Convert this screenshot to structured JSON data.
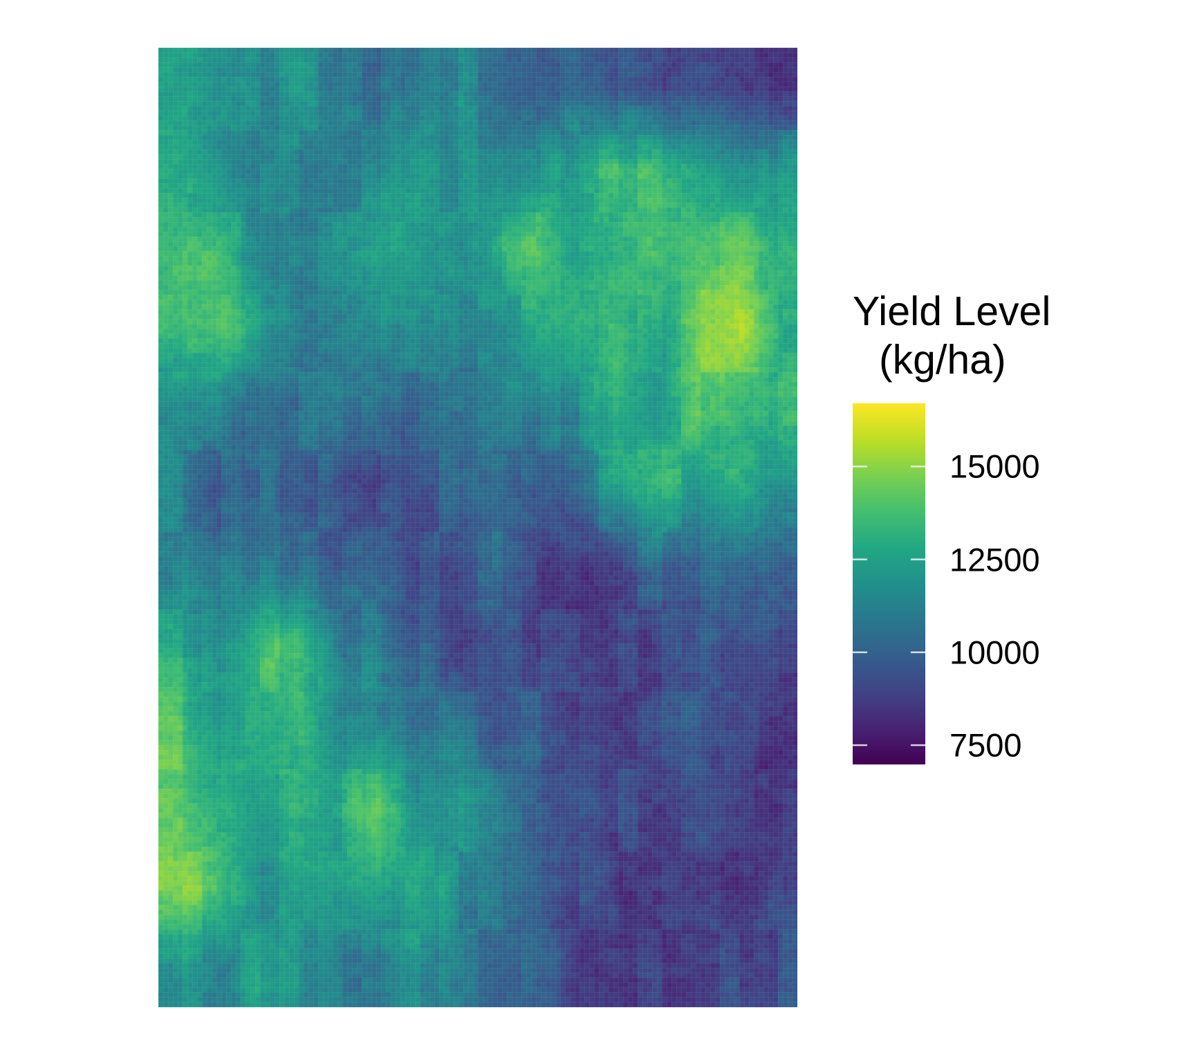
{
  "chart_data": {
    "type": "heatmap",
    "description_of_field": "",
    "title": "",
    "xlabel": "",
    "ylabel": "",
    "grid": false,
    "legend": {
      "placement": "right",
      "title_line1": "Yield Level",
      "title_line2": "(kg/ha)",
      "colormap": "viridis",
      "range": [
        7000,
        16700
      ],
      "ticks": [
        {
          "value": 15000,
          "label": "15000"
        },
        {
          "value": 12500,
          "label": "12500"
        },
        {
          "value": 10000,
          "label": "10000"
        },
        {
          "value": 7500,
          "label": "7500"
        }
      ]
    },
    "grid_rows": 12,
    "grid_cols": 16,
    "values": [
      [
        12900,
        11900,
        11500,
        11800,
        11000,
        10300,
        10800,
        11500,
        10700,
        10100,
        10200,
        9400,
        9000,
        9300,
        9100,
        8600
      ],
      [
        13100,
        12000,
        11300,
        10900,
        11400,
        11200,
        12400,
        11800,
        11700,
        11800,
        12900,
        13600,
        13400,
        12400,
        12200,
        11900
      ],
      [
        13700,
        13400,
        11700,
        11200,
        11600,
        12700,
        12400,
        11700,
        13100,
        13800,
        12500,
        13300,
        13700,
        13900,
        14200,
        13100
      ],
      [
        13800,
        13800,
        12600,
        11200,
        11200,
        11600,
        11100,
        11500,
        11300,
        12400,
        13400,
        13600,
        12400,
        14400,
        15300,
        12900
      ],
      [
        11400,
        11200,
        10900,
        10400,
        10900,
        10200,
        10600,
        10500,
        11100,
        11000,
        11600,
        13600,
        12300,
        14200,
        13700,
        13300
      ],
      [
        11200,
        9600,
        10200,
        10300,
        9300,
        8900,
        9700,
        10200,
        10700,
        9700,
        10700,
        12300,
        13500,
        12400,
        13000,
        11800
      ],
      [
        11500,
        10600,
        10800,
        10500,
        9900,
        10100,
        9000,
        9400,
        10200,
        9100,
        8700,
        8900,
        10300,
        10000,
        10600,
        10000
      ],
      [
        12900,
        11300,
        13300,
        14300,
        11000,
        10800,
        10100,
        9100,
        9600,
        9000,
        8600,
        8900,
        9000,
        9700,
        9200,
        9400
      ],
      [
        14000,
        12500,
        13000,
        13700,
        12000,
        11600,
        10900,
        10700,
        9600,
        9900,
        9300,
        9000,
        9400,
        9400,
        8700,
        8600
      ],
      [
        14400,
        13200,
        12600,
        13100,
        12700,
        14700,
        12100,
        12000,
        10900,
        10000,
        9500,
        9300,
        8600,
        8900,
        8600,
        8300
      ],
      [
        14800,
        14000,
        11800,
        12500,
        12000,
        12700,
        13200,
        11600,
        10700,
        10100,
        9300,
        8400,
        8700,
        8600,
        8500,
        8900
      ],
      [
        12000,
        11200,
        12500,
        11800,
        11200,
        10500,
        11700,
        10700,
        10500,
        9800,
        8600,
        8700,
        8500,
        9100,
        9300,
        9400
      ]
    ]
  }
}
